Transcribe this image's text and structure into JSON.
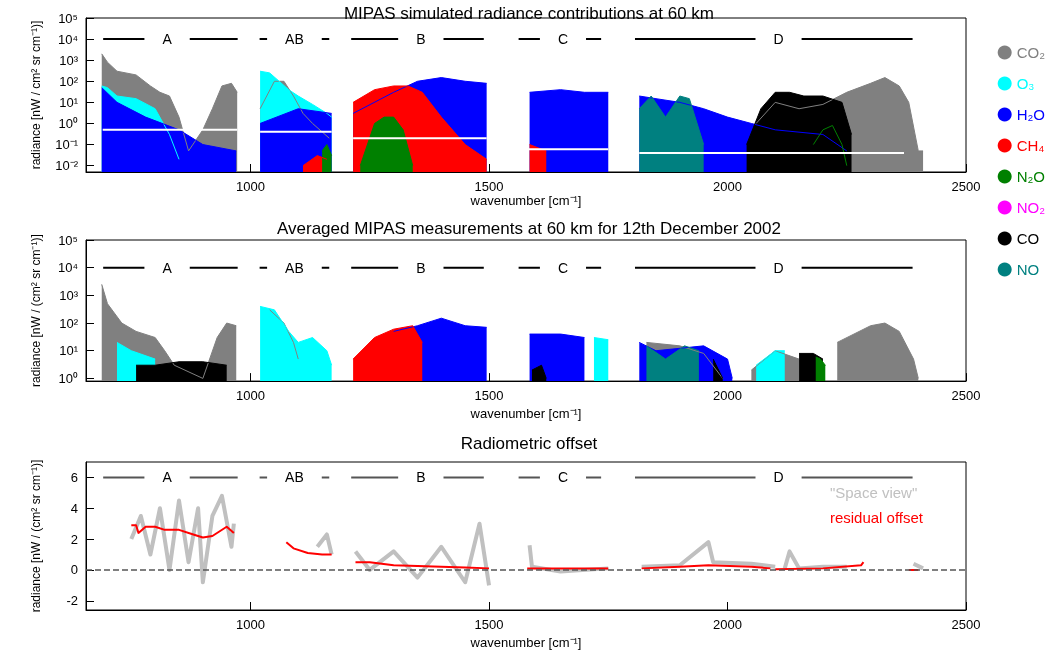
{
  "chart_data": [
    {
      "type": "area",
      "title": "MIPAS simulated radiance contributions at 60 km",
      "xlabel": "wavenumber [cm⁻¹]",
      "ylabel": "radiance [nW / cm² sr cm⁻¹)]",
      "xlim": [
        655,
        2500
      ],
      "xticks": [
        1000,
        1500,
        2000,
        2500
      ],
      "ylim": [
        0.005,
        100000
      ],
      "yticks": [
        {
          "value": 0.01,
          "label": "10⁻²"
        },
        {
          "value": 0.1,
          "label": "10⁻¹"
        },
        {
          "value": 1,
          "label": "10⁰"
        },
        {
          "value": 10,
          "label": "10¹"
        },
        {
          "value": 100,
          "label": "10²"
        },
        {
          "value": 1000,
          "label": "10³"
        },
        {
          "value": 10000,
          "label": "10⁴"
        },
        {
          "value": 100000,
          "label": "10⁵"
        }
      ],
      "log": "y",
      "grid": false,
      "legend": "right",
      "annotations": [
        {
          "text": "A",
          "x": 825,
          "y": 10000
        },
        {
          "text": "AB",
          "x": 1092,
          "y": 10000
        },
        {
          "text": "B",
          "x": 1357,
          "y": 10000
        },
        {
          "text": "C",
          "x": 1655,
          "y": 10000
        },
        {
          "text": "D",
          "x": 2107,
          "y": 10000
        }
      ],
      "series": [
        {
          "name": "CO₂",
          "color": "#808080",
          "x": [
            688,
            700,
            720,
            760,
            790,
            810,
            830,
            850,
            870,
            900,
            920,
            940,
            960,
            972,
            980,
            1020,
            1050,
            1070,
            1090,
            1110,
            1130,
            1165,
            1175,
            2060,
            2100,
            2150,
            2200,
            2250,
            2300,
            2330,
            2360,
            2380,
            2400,
            2410
          ],
          "values": [
            2000,
            800,
            300,
            200,
            60,
            30,
            20,
            2,
            0.05,
            0.5,
            5,
            60,
            80,
            30,
            null,
            5,
            100,
            100,
            20,
            3,
            1,
            0.2,
            null,
            1,
            10,
            5,
            8,
            30,
            80,
            150,
            60,
            10,
            0.05,
            0.05
          ]
        },
        {
          "name": "O₃",
          "color": "#00ffff",
          "x": [
            688,
            700,
            720,
            760,
            800,
            830,
            850,
            860,
            1020,
            1040,
            1060,
            1080,
            1100,
            1130,
            1160,
            1170
          ],
          "values": [
            60,
            50,
            20,
            15,
            5,
            0.3,
            0.02,
            null,
            300,
            250,
            100,
            40,
            20,
            8,
            3,
            2
          ]
        },
        {
          "name": "H₂O",
          "color": "#0000ff",
          "x": [
            688,
            720,
            780,
            850,
            900,
            970,
            980,
            1020,
            1100,
            1170,
            1180,
            1215,
            1300,
            1350,
            1400,
            1450,
            1495,
            1510,
            1585,
            1650,
            1700,
            1750,
            1760,
            1815,
            1850,
            1900,
            1950,
            2000,
            2050,
            2100,
            2200,
            2250
          ],
          "values": [
            50,
            10,
            2,
            0.5,
            0.1,
            0.05,
            null,
            1,
            5,
            3,
            null,
            3,
            30,
            100,
            150,
            100,
            80,
            null,
            30,
            40,
            30,
            30,
            null,
            20,
            15,
            10,
            5,
            2,
            1,
            0.5,
            0.3,
            0.05
          ]
        },
        {
          "name": "CH₄",
          "color": "#ff0000",
          "x": [
            1110,
            1140,
            1160,
            1170,
            1215,
            1260,
            1300,
            1330,
            1360,
            1400,
            1450,
            1495,
            1510,
            1585,
            1620
          ],
          "values": [
            0.01,
            0.03,
            0.02,
            null,
            10,
            40,
            60,
            60,
            30,
            2,
            0.1,
            0.02,
            null,
            0.1,
            0.05
          ]
        },
        {
          "name": "N₂O",
          "color": "#008000",
          "x": [
            1150,
            1160,
            1170,
            1180,
            1230,
            1260,
            1280,
            1300,
            1320,
            1340,
            1350,
            2180,
            2200,
            2220,
            2240,
            2250
          ],
          "values": [
            0.05,
            0.1,
            0.03,
            null,
            0.01,
            1,
            2,
            2,
            0.5,
            0.01,
            null,
            0.1,
            0.5,
            0.8,
            0.1,
            0.01
          ]
        },
        {
          "name": "NO₂",
          "color": "#ff00ff"
        },
        {
          "name": "CO",
          "color": "#000000",
          "x": [
            2040,
            2070,
            2100,
            2130,
            2160,
            2200,
            2240,
            2260
          ],
          "values": [
            0.1,
            5,
            30,
            30,
            20,
            20,
            10,
            0.3
          ]
        },
        {
          "name": "NO",
          "color": "#008080",
          "x": [
            1815,
            1840,
            1870,
            1900,
            1920,
            1950
          ],
          "values": [
            5,
            20,
            2,
            20,
            15,
            0.1
          ]
        },
        {
          "type": "line",
          "color": "#ffffff",
          "x": [
            690,
            972,
            980,
            1020,
            1170,
            1180,
            1215,
            1495,
            1510,
            1580,
            1750,
            1760,
            1815,
            2370
          ],
          "values": [
            0.5,
            0.5,
            null,
            0.4,
            0.4,
            null,
            0.2,
            0.2,
            null,
            0.06,
            0.06,
            null,
            0.04,
            0.04
          ]
        },
        {
          "type": "line",
          "color": "#000000",
          "x": [
            691,
            973,
            980,
            1019,
            1165,
            1170,
            1211,
            1489,
            1500,
            1562,
            1735,
            1740,
            1806,
            2388
          ],
          "values": [
            10000,
            10000,
            null,
            10000,
            10000,
            null,
            10000,
            10000,
            null,
            10000,
            10000,
            null,
            10000,
            10000
          ]
        }
      ]
    },
    {
      "type": "area",
      "title": "Averaged MIPAS measurements at 60 km for 12th December 2002",
      "xlabel": "wavenumber [cm⁻¹]",
      "ylabel": "radiance [nW / (cm² sr cm⁻¹)]",
      "xlim": [
        655,
        2500
      ],
      "xticks": [
        1000,
        1500,
        2000,
        2500
      ],
      "ylim": [
        0.8,
        100000
      ],
      "yticks": [
        {
          "value": 1,
          "label": "10⁰"
        },
        {
          "value": 10,
          "label": "10¹"
        },
        {
          "value": 100,
          "label": "10²"
        },
        {
          "value": 1000,
          "label": "10³"
        },
        {
          "value": 10000,
          "label": "10⁴"
        },
        {
          "value": 100000,
          "label": "10⁵"
        }
      ],
      "log": "y",
      "grid": false,
      "annotations": [
        {
          "text": "A",
          "x": 825,
          "y": 10000
        },
        {
          "text": "AB",
          "x": 1092,
          "y": 10000
        },
        {
          "text": "B",
          "x": 1357,
          "y": 10000
        },
        {
          "text": "C",
          "x": 1655,
          "y": 10000
        },
        {
          "text": "D",
          "x": 2107,
          "y": 10000
        }
      ],
      "series": [
        {
          "color": "#808080",
          "x": [
            688,
            700,
            730,
            760,
            800,
            820,
            840,
            900,
            930,
            950,
            970,
            980,
            1040,
            1070,
            1090,
            1100,
            1110,
            1830,
            1900,
            1950,
            1990,
            2000,
            2050,
            2100,
            2150,
            2160,
            2230,
            2300,
            2330,
            2360,
            2390,
            2400
          ],
          "values": [
            2500,
            500,
            100,
            50,
            30,
            10,
            3,
            1,
            30,
            100,
            80,
            null,
            300,
            100,
            20,
            5,
            null,
            20,
            15,
            8,
            1,
            null,
            2,
            10,
            5,
            null,
            20,
            80,
            100,
            50,
            5,
            1
          ]
        },
        {
          "color": "#00ffff",
          "x": [
            720,
            750,
            800,
            810,
            1020,
            1050,
            1080,
            1100,
            1130,
            1160,
            1170,
            1180,
            1720,
            1750,
            1760,
            2060,
            2100,
            2120
          ],
          "values": [
            20,
            10,
            5,
            null,
            400,
            300,
            50,
            20,
            30,
            10,
            3,
            null,
            30,
            25,
            null,
            3,
            10,
            10
          ]
        },
        {
          "color": "#0000ff",
          "x": [
            1300,
            1350,
            1400,
            1450,
            1495,
            1510,
            1585,
            1650,
            1700,
            1710,
            1815,
            1850,
            1950,
            2000,
            2010
          ],
          "values": [
            50,
            80,
            150,
            80,
            70,
            null,
            40,
            40,
            30,
            null,
            20,
            10,
            15,
            5,
            1
          ]
        },
        {
          "color": "#ff0000",
          "x": [
            1215,
            1260,
            1300,
            1340,
            1360
          ],
          "values": [
            5,
            30,
            60,
            80,
            20
          ]
        },
        {
          "color": "#000000",
          "x": [
            760,
            800,
            850,
            900,
            950,
            960,
            1590,
            1610,
            1620,
            1630,
            1970,
            1990,
            2000,
            2150,
            2180,
            2200
          ],
          "values": [
            3,
            3,
            4,
            4,
            3,
            null,
            2,
            3,
            1,
            null,
            5,
            1,
            null,
            8,
            8,
            5
          ]
        },
        {
          "color": "#008080",
          "x": [
            1830,
            1870,
            1910,
            1940
          ],
          "values": [
            15,
            5,
            15,
            10
          ]
        },
        {
          "color": "#008000",
          "x": [
            2185,
            2195,
            2205
          ],
          "values": [
            6,
            5,
            3
          ]
        },
        {
          "type": "line",
          "color": "#000000",
          "x": [
            691,
            973,
            980,
            1019,
            1165,
            1170,
            1211,
            1489,
            1500,
            1562,
            1735,
            1740,
            1806,
            2388
          ],
          "values": [
            10000,
            10000,
            null,
            10000,
            10000,
            null,
            10000,
            10000,
            null,
            10000,
            10000,
            null,
            10000,
            10000
          ]
        }
      ]
    },
    {
      "type": "line",
      "title": "Radiometric offset",
      "xlabel": "wavenumber [cm⁻¹]",
      "ylabel": "radiance [nW / (cm² sr cm⁻¹)]",
      "xlim": [
        655,
        2500
      ],
      "xticks": [
        1000,
        1500,
        2000,
        2500
      ],
      "ylim": [
        -2.6,
        7
      ],
      "yticks": [
        -2,
        0,
        2,
        4,
        6
      ],
      "grid": false,
      "legend": "top right",
      "ref_lines": [
        {
          "axis": "y",
          "value": 0,
          "color": "#555555",
          "line_style": "dashed"
        }
      ],
      "annotations": [
        {
          "text": "A",
          "x": 825,
          "y": 6
        },
        {
          "text": "AB",
          "x": 1092,
          "y": 6
        },
        {
          "text": "B",
          "x": 1357,
          "y": 6
        },
        {
          "text": "C",
          "x": 1655,
          "y": 6
        },
        {
          "text": "D",
          "x": 2107,
          "y": 6
        }
      ],
      "series": [
        {
          "name": "\"Space view\"",
          "color": "#c0c0c0",
          "x": [
            750,
            770,
            790,
            810,
            830,
            850,
            870,
            890,
            900,
            920,
            940,
            960,
            965,
            975,
            1140,
            1160,
            1170,
            1180,
            1220,
            1250,
            1300,
            1350,
            1400,
            1450,
            1480,
            1500,
            1510,
            1585,
            1590,
            1650,
            1750,
            1760,
            1820,
            1900,
            1960,
            1970,
            2050,
            2100,
            2110,
            2120,
            2130,
            2150,
            2200,
            2250,
            2260,
            2390,
            2410
          ],
          "values": [
            2,
            3.5,
            1,
            4,
            0,
            4.5,
            0.5,
            4,
            -0.8,
            3.5,
            4.8,
            1.5,
            3,
            null,
            1.5,
            2.3,
            1,
            null,
            1.2,
            0,
            1.2,
            -0.5,
            1.5,
            -0.8,
            3,
            -1,
            null,
            1.6,
            0.2,
            -0.1,
            0.1,
            null,
            0.2,
            0.3,
            1.8,
            0.5,
            0.4,
            0.2,
            null,
            0.1,
            1.2,
            0.1,
            0.2,
            0.2,
            null,
            0.4,
            0.1
          ]
        },
        {
          "name": "residual offset",
          "color": "#ff0000",
          "x": [
            750,
            760,
            765,
            780,
            800,
            820,
            850,
            880,
            900,
            920,
            950,
            965,
            975,
            1075,
            1090,
            1120,
            1150,
            1170,
            1180,
            1220,
            1250,
            1300,
            1400,
            1450,
            1500,
            1510,
            1580,
            1750,
            1760,
            1820,
            1900,
            1960,
            2050,
            2090,
            2095,
            2100,
            2200,
            2280,
            2285,
            2290,
            2380,
            2400
          ],
          "values": [
            2.9,
            2.9,
            2.4,
            2.8,
            2.8,
            2.6,
            2.6,
            2.3,
            2.1,
            2.2,
            2.8,
            2.4,
            null,
            1.8,
            1.4,
            1.1,
            1,
            1,
            null,
            0.5,
            0.5,
            0.3,
            0.2,
            0.15,
            0.1,
            null,
            0.1,
            0.1,
            null,
            0.1,
            0.2,
            0.3,
            0.2,
            0.1,
            null,
            0.05,
            0.1,
            0.3,
            0.5,
            null,
            0,
            0
          ]
        },
        {
          "type": "line",
          "color": "#555555",
          "x": [
            691,
            973,
            980,
            1019,
            1165,
            1170,
            1211,
            1489,
            1500,
            1562,
            1735,
            1740,
            1806,
            2388
          ],
          "values": [
            6,
            6,
            null,
            6,
            6,
            null,
            6,
            6,
            null,
            6,
            6,
            null,
            6,
            6
          ]
        }
      ]
    }
  ]
}
